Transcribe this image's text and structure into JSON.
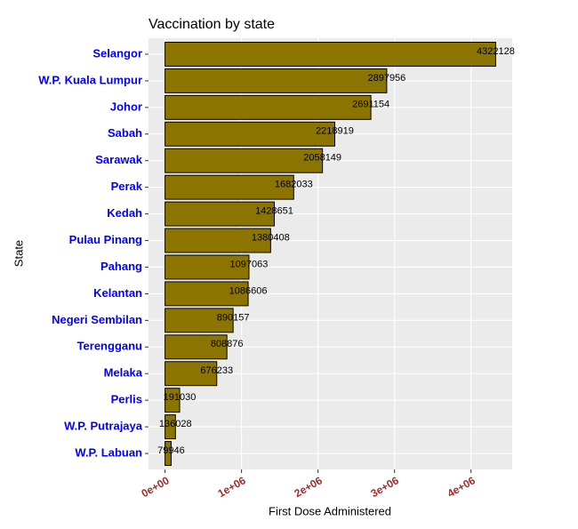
{
  "chart_data": {
    "type": "barh",
    "title": "Vaccination by state",
    "x_label": "First Dose Administered",
    "y_label": "State",
    "categories": [
      "Selangor",
      "W.P. Kuala Lumpur",
      "Johor",
      "Sabah",
      "Sarawak",
      "Perak",
      "Kedah",
      "Pulau Pinang",
      "Pahang",
      "Kelantan",
      "Negeri Sembilan",
      "Terengganu",
      "Melaka",
      "Perlis",
      "W.P. Putrajaya",
      "W.P. Labuan"
    ],
    "values": [
      4322128,
      2897956,
      2691154,
      2218919,
      2058149,
      1682033,
      1428651,
      1380408,
      1097063,
      1086606,
      890157,
      808876,
      676233,
      191030,
      136028,
      79946
    ],
    "color": "#8b7500",
    "xlim": [
      -216106,
      4538234
    ],
    "xticks": [
      {
        "value": 0,
        "label": "0e+00"
      },
      {
        "value": 1000000,
        "label": "1e+06"
      },
      {
        "value": 2000000,
        "label": "2e+06"
      },
      {
        "value": 3000000,
        "label": "3e+06"
      },
      {
        "value": 4000000,
        "label": "4e+06"
      }
    ],
    "grid": true
  }
}
